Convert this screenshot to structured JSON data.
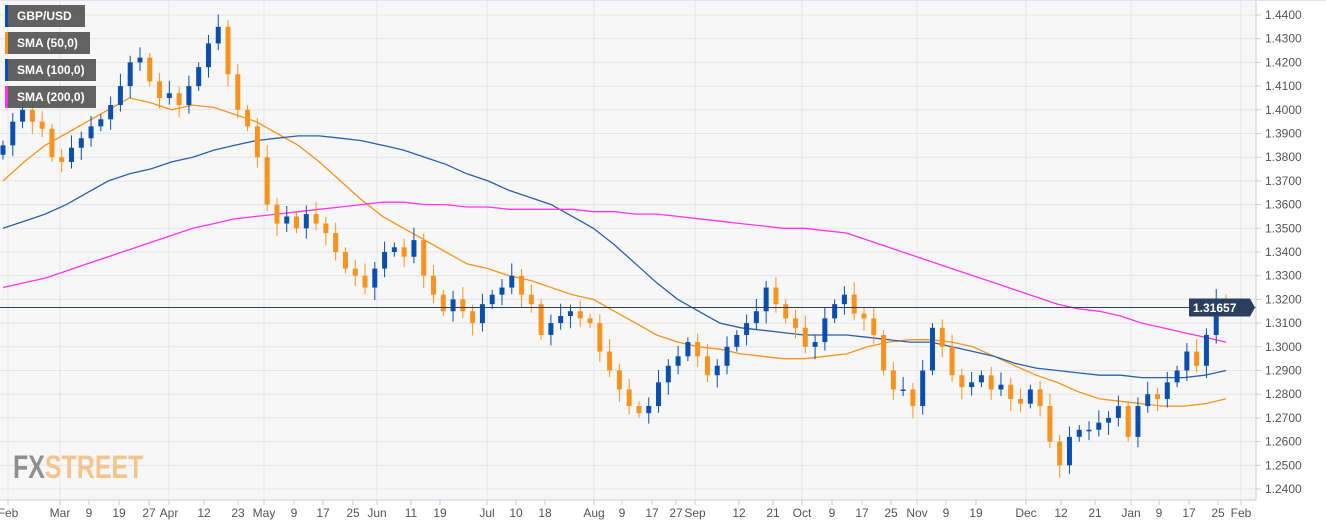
{
  "chart_data": {
    "type": "candlestick",
    "title": "GBP/USD",
    "ylim": [
      1.236,
      1.446
    ],
    "yticks": [
      "1.2400",
      "1.2500",
      "1.2600",
      "1.2700",
      "1.2800",
      "1.2900",
      "1.3000",
      "1.3100",
      "1.3200",
      "1.3300",
      "1.3400",
      "1.3500",
      "1.3600",
      "1.3700",
      "1.3800",
      "1.3900",
      "1.4000",
      "1.4100",
      "1.4200",
      "1.4300",
      "1.4400"
    ],
    "xticks": [
      "Feb",
      "Mar",
      "9",
      "19",
      "27",
      "Apr",
      "12",
      "23",
      "May",
      "9",
      "17",
      "25",
      "Jun",
      "11",
      "19",
      "Jul",
      "10",
      "18",
      "Aug",
      "9",
      "17",
      "27",
      "Sep",
      "12",
      "21",
      "Oct",
      "9",
      "17",
      "25",
      "Nov",
      "9",
      "19",
      "Dec",
      "12",
      "21",
      "Jan",
      "9",
      "17",
      "25",
      "Feb"
    ],
    "last_price": "1.31657",
    "last_price_value": 1.31657,
    "colors": {
      "up": "#0a4fad",
      "down": "#f7931e",
      "sma50": "#f7931e",
      "sma100": "#2b5fae",
      "sma200": "#ff33ee",
      "last_line": "#2a3f5f"
    },
    "closes": [
      1.385,
      1.395,
      1.4,
      1.395,
      1.392,
      1.38,
      1.378,
      1.384,
      1.388,
      1.393,
      1.396,
      1.402,
      1.41,
      1.42,
      1.422,
      1.412,
      1.405,
      1.407,
      1.402,
      1.41,
      1.418,
      1.428,
      1.435,
      1.415,
      1.4,
      1.393,
      1.38,
      1.36,
      1.352,
      1.355,
      1.35,
      1.356,
      1.352,
      1.348,
      1.34,
      1.333,
      1.33,
      1.325,
      1.333,
      1.34,
      1.342,
      1.338,
      1.345,
      1.33,
      1.322,
      1.315,
      1.32,
      1.315,
      1.31,
      1.318,
      1.322,
      1.325,
      1.33,
      1.322,
      1.318,
      1.305,
      1.31,
      1.313,
      1.315,
      1.312,
      1.31,
      1.298,
      1.29,
      1.282,
      1.275,
      1.272,
      1.275,
      1.285,
      1.292,
      1.296,
      1.302,
      1.296,
      1.288,
      1.292,
      1.3,
      1.305,
      1.31,
      1.315,
      1.325,
      1.318,
      1.312,
      1.308,
      1.3,
      1.302,
      1.312,
      1.318,
      1.322,
      1.314,
      1.312,
      1.305,
      1.29,
      1.282,
      1.282,
      1.275,
      1.29,
      1.308,
      1.3,
      1.288,
      1.283,
      1.285,
      1.288,
      1.282,
      1.284,
      1.278,
      1.276,
      1.282,
      1.275,
      1.26,
      1.25,
      1.262,
      1.265,
      1.265,
      1.268,
      1.27,
      1.275,
      1.262,
      1.275,
      1.28,
      1.278,
      1.285,
      1.29,
      1.298,
      1.292,
      1.305,
      1.32,
      1.3166
    ],
    "series": [
      {
        "name": "SMA (50,0)",
        "values": [
          1.37,
          1.378,
          1.385,
          1.39,
          1.395,
          1.4,
          1.405,
          1.403,
          1.4,
          1.402,
          1.401,
          1.398,
          1.395,
          1.39,
          1.385,
          1.378,
          1.37,
          1.362,
          1.355,
          1.35,
          1.345,
          1.34,
          1.335,
          1.333,
          1.33,
          1.328,
          1.325,
          1.322,
          1.32,
          1.315,
          1.31,
          1.305,
          1.302,
          1.3,
          1.299,
          1.297,
          1.296,
          1.295,
          1.295,
          1.296,
          1.297,
          1.3,
          1.302,
          1.303,
          1.303,
          1.302,
          1.3,
          1.296,
          1.292,
          1.288,
          1.285,
          1.281,
          1.278,
          1.277,
          1.276,
          1.275,
          1.275,
          1.276,
          1.278
        ]
      },
      {
        "name": "SMA (100,0)",
        "values": [
          1.35,
          1.353,
          1.356,
          1.36,
          1.365,
          1.37,
          1.373,
          1.375,
          1.378,
          1.38,
          1.383,
          1.385,
          1.387,
          1.388,
          1.389,
          1.389,
          1.388,
          1.387,
          1.385,
          1.383,
          1.38,
          1.377,
          1.373,
          1.37,
          1.366,
          1.363,
          1.36,
          1.355,
          1.35,
          1.343,
          1.335,
          1.327,
          1.32,
          1.315,
          1.31,
          1.308,
          1.307,
          1.306,
          1.305,
          1.305,
          1.305,
          1.304,
          1.303,
          1.302,
          1.302,
          1.3,
          1.298,
          1.296,
          1.293,
          1.291,
          1.29,
          1.289,
          1.288,
          1.288,
          1.287,
          1.287,
          1.287,
          1.288,
          1.29
        ]
      },
      {
        "name": "SMA (200,0)",
        "values": [
          1.325,
          1.327,
          1.329,
          1.332,
          1.335,
          1.338,
          1.341,
          1.344,
          1.347,
          1.35,
          1.352,
          1.354,
          1.355,
          1.356,
          1.357,
          1.358,
          1.359,
          1.36,
          1.361,
          1.361,
          1.36,
          1.36,
          1.359,
          1.359,
          1.358,
          1.358,
          1.358,
          1.358,
          1.357,
          1.357,
          1.356,
          1.356,
          1.355,
          1.354,
          1.353,
          1.352,
          1.351,
          1.35,
          1.35,
          1.349,
          1.348,
          1.345,
          1.342,
          1.339,
          1.336,
          1.333,
          1.33,
          1.327,
          1.324,
          1.321,
          1.318,
          1.316,
          1.315,
          1.313,
          1.31,
          1.308,
          1.306,
          1.304,
          1.302
        ]
      }
    ]
  },
  "legend": {
    "pair": "GBP/USD",
    "sma50": "SMA (50,0)",
    "sma100": "SMA (100,0)",
    "sma200": "SMA (200,0)"
  },
  "watermark": {
    "fx": "FX",
    "street": "STREET"
  }
}
